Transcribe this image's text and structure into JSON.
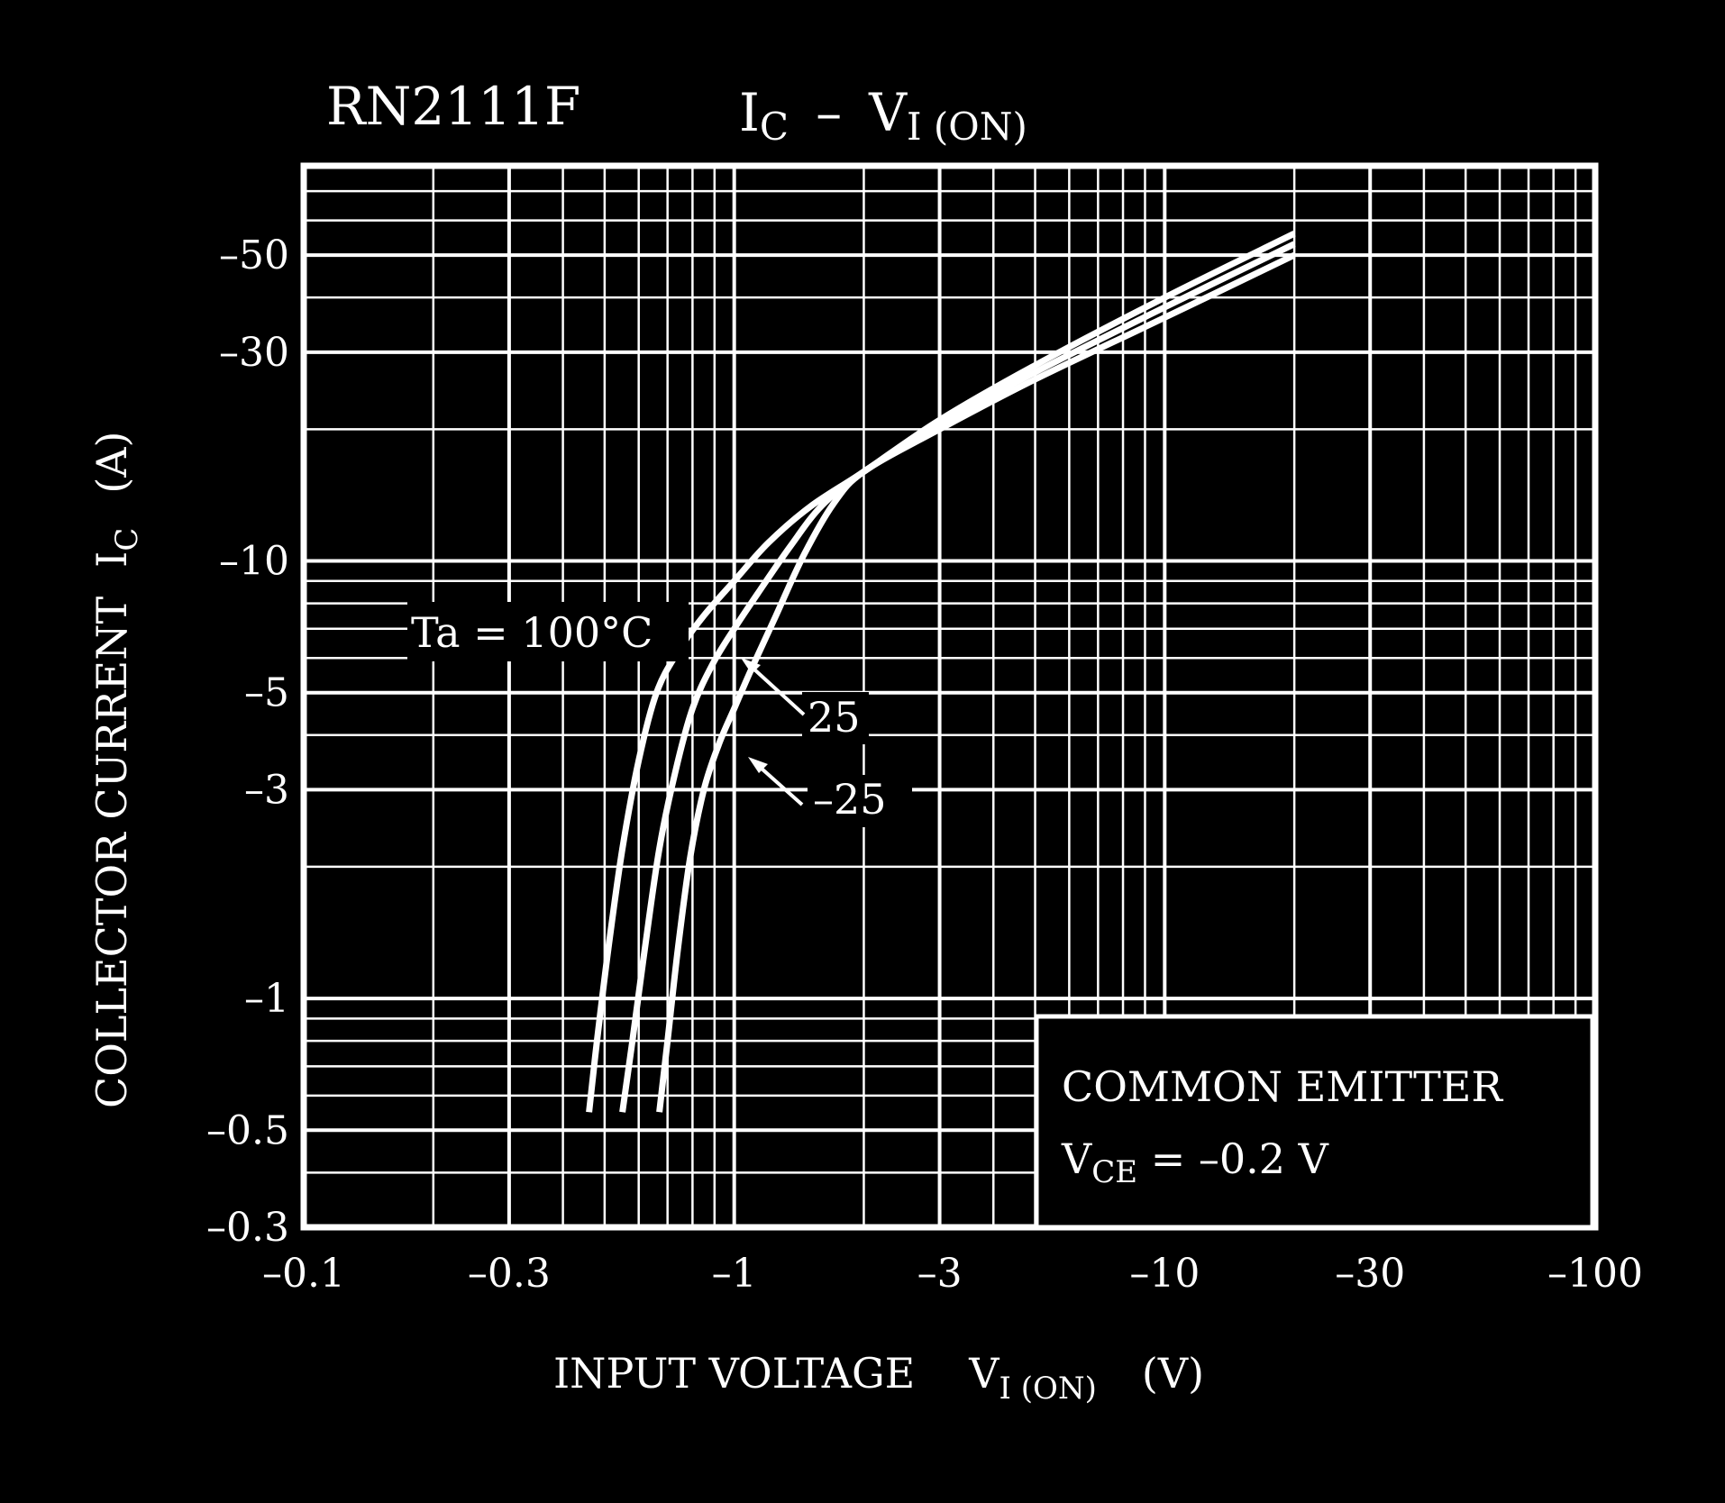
{
  "chart_data": {
    "type": "line",
    "title": {
      "device": "RN2111F",
      "y_main": "I",
      "y_sub": "C",
      "dash": "–",
      "x_main": "V",
      "x_sub": "I (ON)"
    },
    "xlabel": {
      "main": "INPUT VOLTAGE",
      "symbol": "V",
      "sub": "I (ON)",
      "unit": "(V)"
    },
    "ylabel": {
      "main": "COLLECTOR CURRENT",
      "symbol": "I",
      "sub": "C",
      "unit": "(A)"
    },
    "x_scale": "log",
    "y_scale": "log",
    "xlim": [
      -0.1,
      -100
    ],
    "ylim": [
      -0.3,
      -80
    ],
    "x_ticks": [
      {
        "value": -0.1,
        "label": "–0.1"
      },
      {
        "value": -0.3,
        "label": "–0.3"
      },
      {
        "value": -1,
        "label": "–1"
      },
      {
        "value": -3,
        "label": "–3"
      },
      {
        "value": -10,
        "label": "–10"
      },
      {
        "value": -30,
        "label": "–30"
      },
      {
        "value": -100,
        "label": "–100"
      }
    ],
    "y_ticks": [
      {
        "value": -0.3,
        "label": "–0.3"
      },
      {
        "value": -0.5,
        "label": "–0.5"
      },
      {
        "value": -1,
        "label": "–1"
      },
      {
        "value": -3,
        "label": "–3"
      },
      {
        "value": -5,
        "label": "–5"
      },
      {
        "value": -10,
        "label": "–10"
      },
      {
        "value": -30,
        "label": "–30"
      },
      {
        "value": -50,
        "label": "–50"
      }
    ],
    "grid": true,
    "series": [
      {
        "name": "Ta = 100°C",
        "x": [
          -0.46,
          -0.48,
          -0.51,
          -0.55,
          -0.6,
          -0.66,
          -0.74,
          -0.85,
          -1.0,
          -1.2,
          -1.5,
          -2.0,
          -3.0,
          -5.0,
          -10.0,
          -20.0
        ],
        "y": [
          -0.55,
          -0.8,
          -1.3,
          -2.2,
          -3.5,
          -5.0,
          -6.2,
          -7.5,
          -9.0,
          -11.0,
          -13.3,
          -16.0,
          -21.0,
          -28.0,
          -40.0,
          -56.0
        ]
      },
      {
        "name": "25",
        "x": [
          -0.55,
          -0.58,
          -0.62,
          -0.67,
          -0.73,
          -0.8,
          -0.89,
          -1.0,
          -1.15,
          -1.35,
          -1.6,
          -2.0,
          -3.0,
          -5.0,
          -10.0,
          -20.0
        ],
        "y": [
          -0.55,
          -0.8,
          -1.3,
          -2.2,
          -3.3,
          -4.6,
          -5.8,
          -7.0,
          -8.6,
          -10.8,
          -13.4,
          -16.0,
          -20.5,
          -27.0,
          -38.0,
          -53.0
        ]
      },
      {
        "name": "–25",
        "x": [
          -0.67,
          -0.7,
          -0.74,
          -0.79,
          -0.85,
          -0.92,
          -1.0,
          -1.1,
          -1.25,
          -1.45,
          -1.7,
          -2.0,
          -3.0,
          -5.0,
          -10.0,
          -20.0
        ],
        "y": [
          -0.55,
          -0.8,
          -1.3,
          -2.1,
          -3.0,
          -3.8,
          -4.6,
          -5.7,
          -7.5,
          -10.3,
          -13.5,
          -16.0,
          -20.0,
          -26.0,
          -36.0,
          -50.0
        ]
      }
    ],
    "series_label_texts": {
      "t100": "Ta = 100°C",
      "t25": "25",
      "tm25": "–25"
    },
    "annotation": {
      "line1": "COMMON EMITTER",
      "line2_main": "V",
      "line2_sub": "CE",
      "line2_rest": " = –0.2 V",
      "position": "bottom-right"
    },
    "colors": {
      "background": "#000000",
      "foreground": "#ffffff"
    }
  }
}
